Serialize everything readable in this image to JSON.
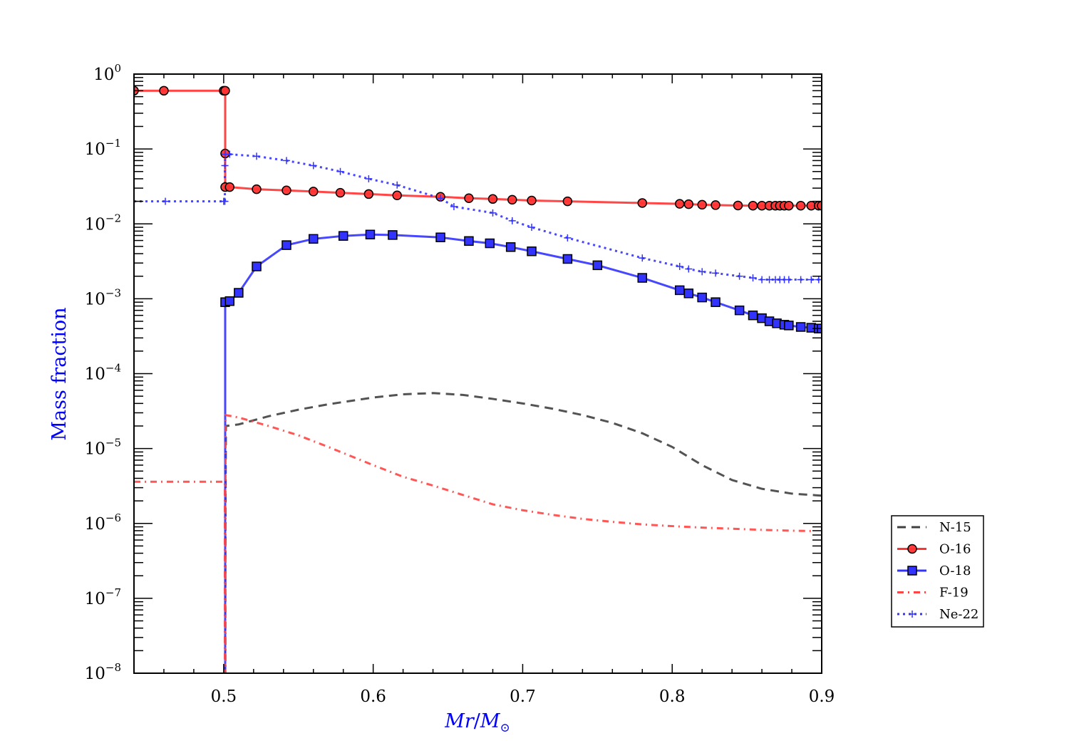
{
  "chart_data": {
    "type": "line",
    "title": "",
    "xlabel": "Mr/M⊙",
    "xlabel_main": "Mr",
    "xlabel_sep": "/",
    "xlabel_m": "M",
    "xlabel_sub": "⊙",
    "ylabel": "Mass fraction",
    "xlim": [
      0.44,
      0.9
    ],
    "ylim": [
      1e-08,
      1
    ],
    "yscale": "log",
    "grid": false,
    "legend_position": "outside-right",
    "x_ticks": [
      {
        "value": 0.5,
        "label": "0.5"
      },
      {
        "value": 0.6,
        "label": "0.6"
      },
      {
        "value": 0.7,
        "label": "0.7"
      },
      {
        "value": 0.8,
        "label": "0.8"
      },
      {
        "value": 0.9,
        "label": "0.9"
      }
    ],
    "y_ticks": [
      {
        "exp": 0,
        "base": "10",
        "sup": "0"
      },
      {
        "exp": -1,
        "base": "10",
        "sup": "−1"
      },
      {
        "exp": -2,
        "base": "10",
        "sup": "−2"
      },
      {
        "exp": -3,
        "base": "10",
        "sup": "−3"
      },
      {
        "exp": -4,
        "base": "10",
        "sup": "−4"
      },
      {
        "exp": -5,
        "base": "10",
        "sup": "−5"
      },
      {
        "exp": -6,
        "base": "10",
        "sup": "−6"
      },
      {
        "exp": -7,
        "base": "10",
        "sup": "−7"
      },
      {
        "exp": -8,
        "base": "10",
        "sup": "−8"
      }
    ],
    "series": [
      {
        "name": "N-15",
        "color": "#404040",
        "dash": "12,8",
        "marker": "none",
        "points": [
          [
            0.501,
            1e-08
          ],
          [
            0.5012,
            1e-06
          ],
          [
            0.5015,
            2e-05
          ],
          [
            0.51,
            2.1e-05
          ],
          [
            0.53,
            2.7e-05
          ],
          [
            0.55,
            3.3e-05
          ],
          [
            0.57,
            3.9e-05
          ],
          [
            0.6,
            4.8e-05
          ],
          [
            0.62,
            5.3e-05
          ],
          [
            0.64,
            5.5e-05
          ],
          [
            0.66,
            5.2e-05
          ],
          [
            0.68,
            4.6e-05
          ],
          [
            0.7,
            4e-05
          ],
          [
            0.72,
            3.4e-05
          ],
          [
            0.74,
            2.8e-05
          ],
          [
            0.76,
            2.2e-05
          ],
          [
            0.78,
            1.6e-05
          ],
          [
            0.8,
            1.05e-05
          ],
          [
            0.82,
            6e-06
          ],
          [
            0.84,
            3.8e-06
          ],
          [
            0.86,
            2.9e-06
          ],
          [
            0.88,
            2.5e-06
          ],
          [
            0.9,
            2.35e-06
          ]
        ]
      },
      {
        "name": "O-16",
        "color": "#ff3333",
        "dash": "",
        "marker": "circle",
        "points": [
          [
            0.44,
            0.6
          ],
          [
            0.46,
            0.6
          ],
          [
            0.5,
            0.6
          ],
          [
            0.501,
            0.6
          ],
          [
            0.501,
            0.087
          ],
          [
            0.501,
            0.031
          ],
          [
            0.504,
            0.031
          ],
          [
            0.522,
            0.029
          ],
          [
            0.542,
            0.028
          ],
          [
            0.56,
            0.027
          ],
          [
            0.578,
            0.026
          ],
          [
            0.597,
            0.025
          ],
          [
            0.616,
            0.024
          ],
          [
            0.645,
            0.023
          ],
          [
            0.664,
            0.022
          ],
          [
            0.68,
            0.0215
          ],
          [
            0.693,
            0.021
          ],
          [
            0.706,
            0.0205
          ],
          [
            0.73,
            0.02
          ],
          [
            0.78,
            0.019
          ],
          [
            0.805,
            0.0185
          ],
          [
            0.811,
            0.0183
          ],
          [
            0.82,
            0.018
          ],
          [
            0.829,
            0.0178
          ],
          [
            0.844,
            0.0176
          ],
          [
            0.854,
            0.0175
          ],
          [
            0.86,
            0.0175
          ],
          [
            0.865,
            0.0175
          ],
          [
            0.869,
            0.0175
          ],
          [
            0.872,
            0.0175
          ],
          [
            0.875,
            0.0175
          ],
          [
            0.878,
            0.0175
          ],
          [
            0.886,
            0.0175
          ],
          [
            0.893,
            0.0175
          ],
          [
            0.898,
            0.0175
          ],
          [
            0.9,
            0.0175
          ]
        ]
      },
      {
        "name": "O-18",
        "color": "#3333ff",
        "dash": "",
        "marker": "square",
        "points": [
          [
            0.501,
            1e-08
          ],
          [
            0.501,
            0.0009
          ],
          [
            0.504,
            0.00093
          ],
          [
            0.51,
            0.0012
          ],
          [
            0.522,
            0.0027
          ],
          [
            0.542,
            0.0052
          ],
          [
            0.56,
            0.0063
          ],
          [
            0.58,
            0.0069
          ],
          [
            0.598,
            0.0072
          ],
          [
            0.613,
            0.0071
          ],
          [
            0.645,
            0.0066
          ],
          [
            0.664,
            0.0059
          ],
          [
            0.678,
            0.0055
          ],
          [
            0.692,
            0.0049
          ],
          [
            0.706,
            0.0043
          ],
          [
            0.73,
            0.0034
          ],
          [
            0.75,
            0.0028
          ],
          [
            0.78,
            0.0019
          ],
          [
            0.805,
            0.0013
          ],
          [
            0.811,
            0.00118
          ],
          [
            0.82,
            0.00104
          ],
          [
            0.829,
            0.0009
          ],
          [
            0.845,
            0.0007
          ],
          [
            0.854,
            0.0006
          ],
          [
            0.86,
            0.00055
          ],
          [
            0.865,
            0.0005
          ],
          [
            0.87,
            0.00047
          ],
          [
            0.875,
            0.00045
          ],
          [
            0.878,
            0.00044
          ],
          [
            0.886,
            0.00042
          ],
          [
            0.893,
            0.00041
          ],
          [
            0.898,
            0.0004
          ],
          [
            0.9,
            0.0004
          ]
        ]
      },
      {
        "name": "F-19",
        "color": "#ff4444",
        "dash": "9,6,2,6",
        "marker": "none",
        "points": [
          [
            0.44,
            3.6e-06
          ],
          [
            0.5,
            3.6e-06
          ],
          [
            0.5008,
            3.6e-06
          ],
          [
            0.5008,
            1e-08
          ],
          [
            0.5012,
            1e-08
          ],
          [
            0.5012,
            2.8e-05
          ],
          [
            0.51,
            2.6e-05
          ],
          [
            0.53,
            2e-05
          ],
          [
            0.55,
            1.5e-05
          ],
          [
            0.57,
            1.05e-05
          ],
          [
            0.6,
            6e-06
          ],
          [
            0.62,
            4.2e-06
          ],
          [
            0.64,
            3.2e-06
          ],
          [
            0.66,
            2.4e-06
          ],
          [
            0.68,
            1.8e-06
          ],
          [
            0.7,
            1.5e-06
          ],
          [
            0.72,
            1.3e-06
          ],
          [
            0.74,
            1.15e-06
          ],
          [
            0.76,
            1.05e-06
          ],
          [
            0.78,
            9.7e-07
          ],
          [
            0.8,
            9.2e-07
          ],
          [
            0.82,
            8.8e-07
          ],
          [
            0.84,
            8.5e-07
          ],
          [
            0.86,
            8.2e-07
          ],
          [
            0.88,
            8e-07
          ],
          [
            0.895,
            7.9e-07
          ]
        ]
      },
      {
        "name": "Ne-22",
        "color": "#3333ff",
        "dash": "3,5",
        "marker": "plus",
        "points": [
          [
            0.44,
            0.02
          ],
          [
            0.461,
            0.02
          ],
          [
            0.5,
            0.02
          ],
          [
            0.5008,
            0.02
          ],
          [
            0.5008,
            0.06
          ],
          [
            0.501,
            0.085
          ],
          [
            0.504,
            0.085
          ],
          [
            0.522,
            0.08
          ],
          [
            0.542,
            0.07
          ],
          [
            0.56,
            0.06
          ],
          [
            0.578,
            0.05
          ],
          [
            0.597,
            0.04
          ],
          [
            0.616,
            0.033
          ],
          [
            0.645,
            0.022
          ],
          [
            0.654,
            0.017
          ],
          [
            0.68,
            0.014
          ],
          [
            0.693,
            0.011
          ],
          [
            0.706,
            0.009
          ],
          [
            0.73,
            0.0065
          ],
          [
            0.78,
            0.0035
          ],
          [
            0.805,
            0.0027
          ],
          [
            0.811,
            0.0025
          ],
          [
            0.82,
            0.0023
          ],
          [
            0.829,
            0.0022
          ],
          [
            0.845,
            0.002
          ],
          [
            0.854,
            0.0019
          ],
          [
            0.86,
            0.0018
          ],
          [
            0.865,
            0.0018
          ],
          [
            0.869,
            0.0018
          ],
          [
            0.872,
            0.0018
          ],
          [
            0.875,
            0.0018
          ],
          [
            0.878,
            0.0018
          ],
          [
            0.886,
            0.0018
          ],
          [
            0.893,
            0.0018
          ],
          [
            0.898,
            0.0018
          ],
          [
            0.9,
            0.0018
          ]
        ]
      }
    ],
    "legend": [
      "N-15",
      "O-16",
      "O-18",
      "F-19",
      "Ne-22"
    ]
  }
}
